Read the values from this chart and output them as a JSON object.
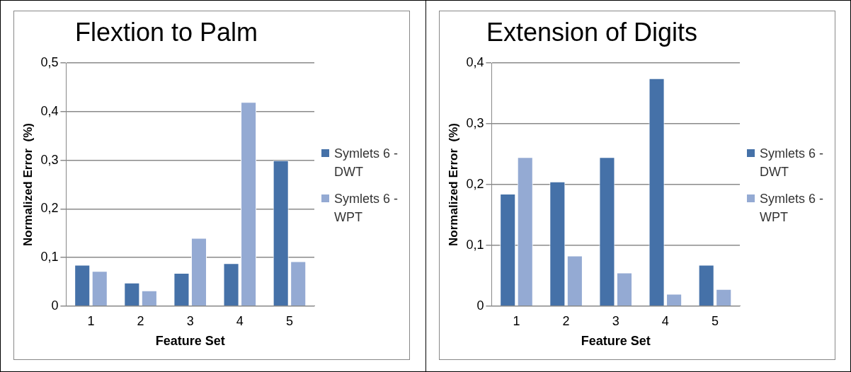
{
  "chart_data": [
    {
      "type": "bar",
      "title": "Flextion to Palm",
      "xlabel": "Feature Set",
      "ylabel": "Normalized Error  (%)",
      "categories": [
        "1",
        "2",
        "3",
        "4",
        "5"
      ],
      "series": [
        {
          "name": "Symlets 6 - DWT",
          "color": "#4571a8",
          "values": [
            0.085,
            0.048,
            0.068,
            0.088,
            0.3
          ]
        },
        {
          "name": "Symlets 6 - WPT",
          "color": "#94aad3",
          "values": [
            0.072,
            0.032,
            0.14,
            0.42,
            0.092
          ]
        }
      ],
      "ylim": [
        0,
        0.5
      ],
      "yticks": [
        0,
        {
          "value": 0.1,
          "label": "0,1"
        },
        {
          "value": 0.2,
          "label": "0,2"
        },
        {
          "value": 0.3,
          "label": "0,3"
        },
        {
          "value": 0.4,
          "label": "0,4"
        },
        {
          "value": 0.5,
          "label": "0,5"
        }
      ],
      "grid": "y",
      "legend": "right"
    },
    {
      "type": "bar",
      "title": "Extension of Digits",
      "xlabel": "Feature Set",
      "ylabel": "Normalized Error  (%)",
      "categories": [
        "1",
        "2",
        "3",
        "4",
        "5"
      ],
      "series": [
        {
          "name": "Symlets 6 - DWT",
          "color": "#4571a8",
          "values": [
            0.185,
            0.205,
            0.245,
            0.375,
            0.068
          ]
        },
        {
          "name": "Symlets 6 - WPT",
          "color": "#94aad3",
          "values": [
            0.245,
            0.083,
            0.055,
            0.02,
            0.028
          ]
        }
      ],
      "ylim": [
        0,
        0.4
      ],
      "yticks": [
        0,
        {
          "value": 0.1,
          "label": "0,1"
        },
        {
          "value": 0.2,
          "label": "0,2"
        },
        {
          "value": 0.3,
          "label": "0,3"
        },
        {
          "value": 0.4,
          "label": "0,4"
        }
      ],
      "grid": "y",
      "legend": "right"
    }
  ]
}
